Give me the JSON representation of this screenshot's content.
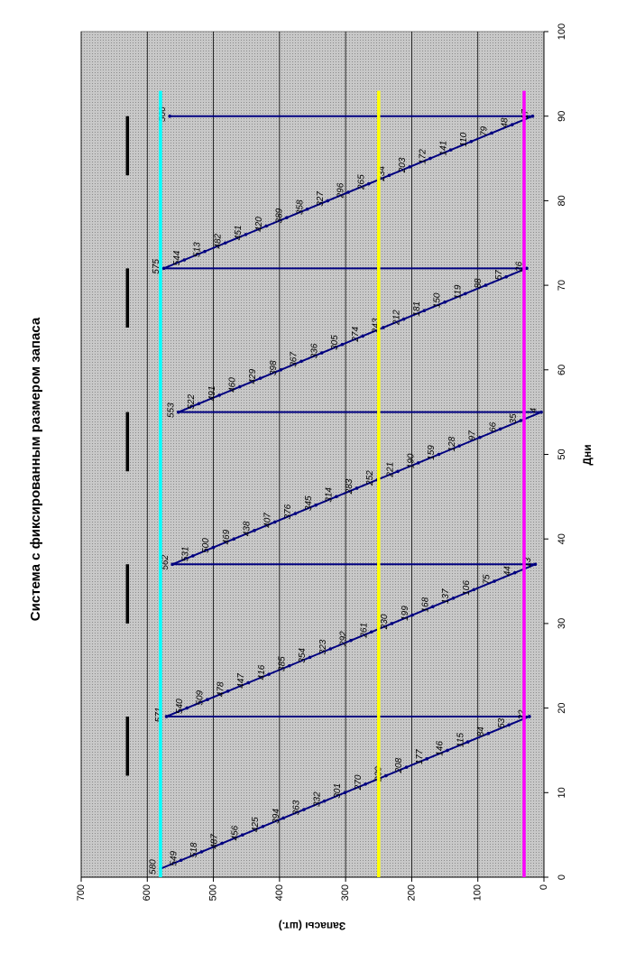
{
  "chart_data": {
    "type": "line",
    "title": "Система с фиксированным размером запаса",
    "xlabel": "Дни",
    "ylabel": "Запасы (шт.)",
    "xlim": [
      0,
      100
    ],
    "xticks": [
      0,
      10,
      20,
      30,
      40,
      50,
      60,
      70,
      80,
      90,
      100
    ],
    "ylim": [
      0,
      700
    ],
    "yticks": [
      0,
      100,
      200,
      300,
      400,
      500,
      600,
      700
    ],
    "grid": true,
    "series": [
      {
        "color": "#000080",
        "markers": true,
        "data_labels": true,
        "x": [
          1,
          2,
          3,
          4,
          5,
          6,
          7,
          8,
          9,
          10,
          11,
          12,
          13,
          14,
          15,
          16,
          17,
          18,
          19,
          19,
          20,
          21,
          22,
          23,
          24,
          25,
          26,
          27,
          28,
          29,
          30,
          31,
          32,
          33,
          34,
          35,
          36,
          37,
          37,
          38,
          39,
          40,
          41,
          42,
          43,
          44,
          45,
          46,
          47,
          48,
          49,
          50,
          51,
          52,
          53,
          54,
          55,
          55,
          56,
          57,
          58,
          59,
          60,
          61,
          62,
          63,
          64,
          65,
          66,
          67,
          68,
          69,
          70,
          71,
          72,
          72,
          73,
          74,
          75,
          76,
          77,
          78,
          79,
          80,
          81,
          82,
          83,
          84,
          85,
          86,
          87,
          88,
          89,
          90,
          90
        ],
        "values": [
          580,
          549,
          518,
          487,
          456,
          425,
          394,
          363,
          332,
          301,
          270,
          239,
          208,
          177,
          146,
          115,
          84,
          53,
          22,
          571,
          540,
          509,
          478,
          447,
          416,
          385,
          354,
          323,
          292,
          261,
          230,
          199,
          168,
          137,
          106,
          75,
          44,
          13,
          562,
          531,
          500,
          469,
          438,
          407,
          376,
          345,
          314,
          283,
          252,
          221,
          190,
          159,
          128,
          97,
          66,
          35,
          4,
          553,
          522,
          491,
          460,
          429,
          398,
          367,
          336,
          305,
          274,
          243,
          212,
          181,
          150,
          119,
          88,
          57,
          26,
          575,
          544,
          513,
          482,
          451,
          420,
          389,
          358,
          327,
          296,
          265,
          234,
          203,
          172,
          141,
          110,
          79,
          48,
          17,
          566
        ]
      },
      {
        "color": "#00ffff",
        "x": [
          0,
          93
        ],
        "values": [
          580,
          580
        ]
      },
      {
        "color": "#ffff00",
        "x": [
          0,
          93
        ],
        "values": [
          250,
          250
        ]
      },
      {
        "color": "#ff00ff",
        "x": [
          0,
          93
        ],
        "values": [
          30,
          30
        ]
      },
      {
        "color": "#000000",
        "x": [
          12,
          19,
          19,
          30,
          37,
          37,
          48,
          55,
          55,
          65,
          72,
          72,
          83,
          90
        ],
        "values": [
          630,
          630,
          null,
          630,
          630,
          null,
          630,
          630,
          null,
          630,
          630,
          null,
          630,
          630
        ]
      }
    ]
  }
}
